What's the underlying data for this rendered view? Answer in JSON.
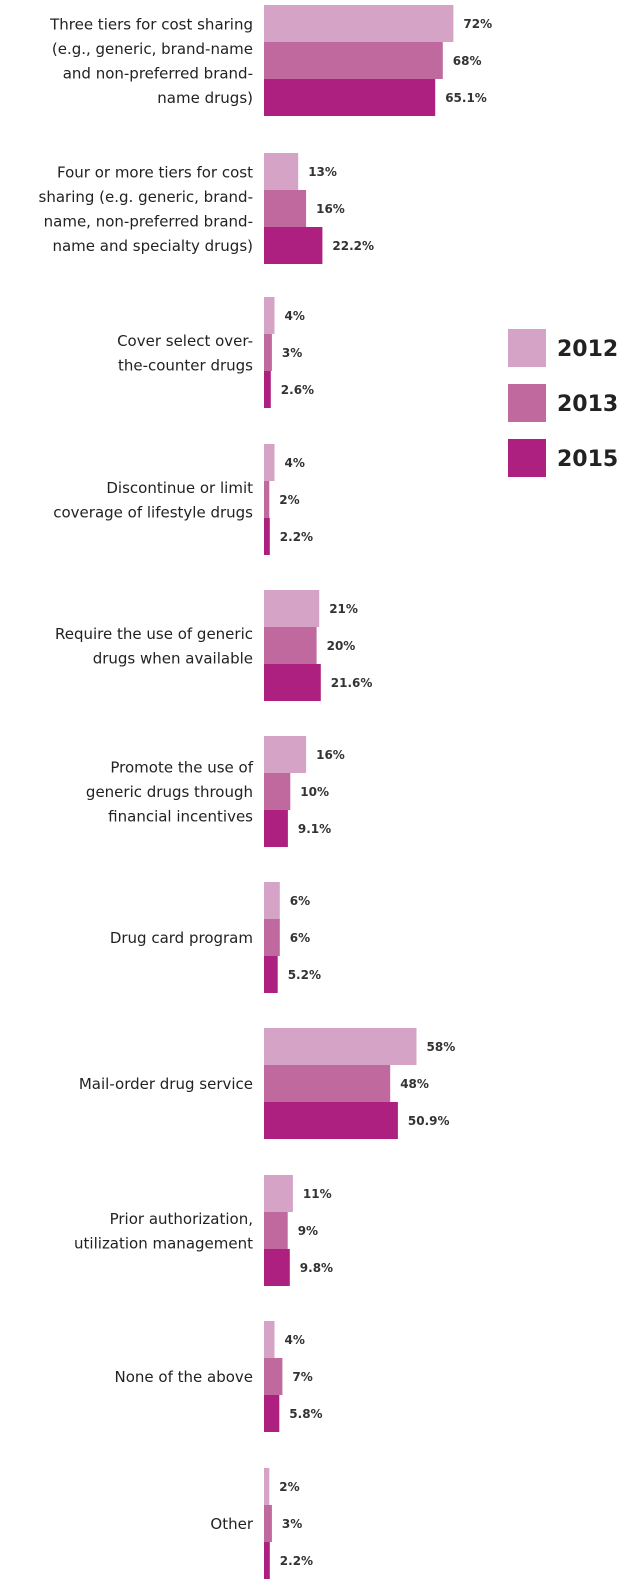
{
  "chart_data": {
    "type": "bar",
    "orientation": "horizontal",
    "title": "",
    "xlabel": "",
    "ylabel": "",
    "grid": false,
    "legend_position": "right",
    "categories": [
      [
        "Three tiers for cost sharing",
        "(e.g., generic, brand-name",
        "and non-preferred brand-",
        "name drugs)"
      ],
      [
        "Four or more tiers for cost",
        "sharing (e.g. generic, brand-",
        "name, non-preferred brand-",
        "name and specialty drugs)"
      ],
      [
        "Cover select over-",
        "the-counter drugs"
      ],
      [
        "Discontinue or limit",
        "coverage of lifestyle drugs"
      ],
      [
        "Require the use of generic",
        "drugs when available"
      ],
      [
        "Promote the use of",
        "generic drugs through",
        "financial incentives"
      ],
      [
        "Drug card program"
      ],
      [
        "Mail-order drug service"
      ],
      [
        "Prior authorization,",
        "utilization management"
      ],
      [
        "None of the above"
      ],
      [
        "Other"
      ]
    ],
    "series": [
      {
        "name": "2012",
        "color": "#d4a3c6",
        "values": [
          72,
          13,
          4,
          4,
          21,
          16,
          6,
          58,
          11,
          4,
          2
        ],
        "labels": [
          "72%",
          "13%",
          "4%",
          "4%",
          "21%",
          "16%",
          "6%",
          "58%",
          "11%",
          "4%",
          "2%"
        ]
      },
      {
        "name": "2013",
        "color": "#bf699f",
        "values": [
          68,
          16,
          3,
          2,
          20,
          10,
          6,
          48,
          9,
          7,
          3
        ],
        "labels": [
          "68%",
          "16%",
          "3%",
          "2%",
          "20%",
          "10%",
          "6%",
          "48%",
          "9%",
          "7%",
          "3%"
        ]
      },
      {
        "name": "2015",
        "color": "#ad2080",
        "values": [
          65.1,
          22.2,
          2.6,
          2.2,
          21.6,
          9.1,
          5.2,
          50.9,
          9.8,
          5.8,
          2.2
        ],
        "labels": [
          "65.1%",
          "22.2%",
          "2.6%",
          "2.2%",
          "21.6%",
          "9.1%",
          "5.2%",
          "50.9%",
          "9.8%",
          "5.8%",
          "2.2%"
        ]
      }
    ]
  }
}
